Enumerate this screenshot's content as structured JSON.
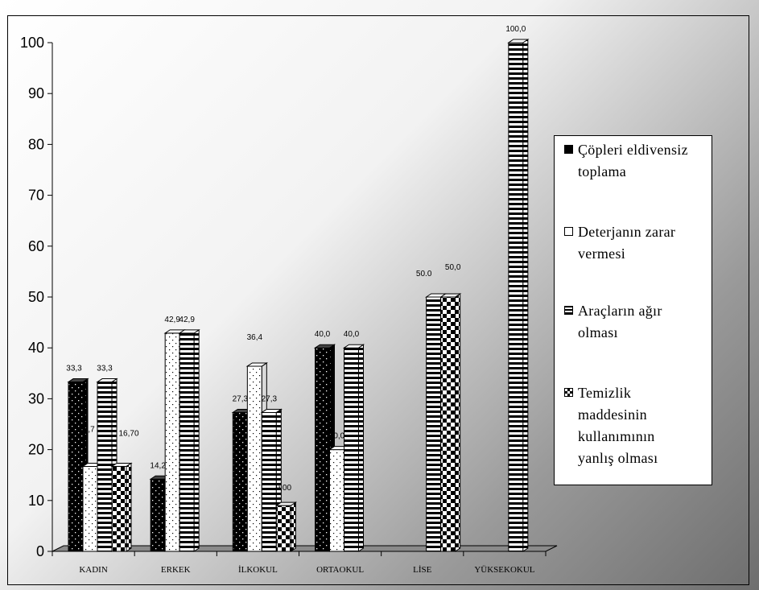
{
  "chart_data": {
    "type": "bar",
    "categories": [
      "KADIN",
      "ERKEK",
      "İLKOKUL",
      "ORTAOKUL",
      "LİSE",
      "YÜKSEKOKUL"
    ],
    "ylim": [
      0,
      100
    ],
    "yticks": [
      0,
      10,
      20,
      30,
      40,
      50,
      60,
      70,
      80,
      90,
      100
    ],
    "grid": false,
    "legend_position": "right",
    "series": [
      {
        "name": "Çöpleri eldivensiz toplama",
        "pattern": "dots-dark",
        "values": [
          33.3,
          14.2,
          27.3,
          40.0,
          null,
          null
        ],
        "labels": [
          "33,3",
          "14,2",
          "27,3",
          "40,0",
          "",
          ""
        ]
      },
      {
        "name": "Deterjanın zarar vermesi",
        "pattern": "dots-light",
        "values": [
          16.7,
          42.9,
          36.4,
          20.0,
          null,
          null
        ],
        "labels": [
          "16,7",
          "42,9",
          "36,4",
          "20,0",
          "",
          ""
        ]
      },
      {
        "name": "Araçların ağır olması",
        "pattern": "horizontal-stripes",
        "values": [
          33.3,
          42.9,
          27.3,
          40.0,
          50.0,
          100.0
        ],
        "labels": [
          "33,3",
          "42,9",
          "27,3",
          "40,0",
          "50.0",
          "100,0"
        ]
      },
      {
        "name": "Temizlik maddesinin kullanımının yanlış olması",
        "pattern": "checker",
        "values": [
          16.7,
          null,
          9.0,
          null,
          50.0,
          null
        ],
        "labels": [
          "16,70",
          "",
          "9,00",
          "",
          "50,0",
          ""
        ]
      }
    ]
  },
  "legend": {
    "items": [
      {
        "lines": [
          "Çöpleri eldivensiz",
          "toplama"
        ],
        "pattern": "dots-dark"
      },
      {
        "lines": [
          "Deterjanın zarar",
          "vermesi"
        ],
        "pattern": "dots-light"
      },
      {
        "lines": [
          "Araçların ağır",
          "olması"
        ],
        "pattern": "horizontal-stripes"
      },
      {
        "lines": [
          "Temizlik",
          "maddesinin",
          "kullanımının",
          "yanlış olması"
        ],
        "pattern": "checker"
      }
    ]
  }
}
